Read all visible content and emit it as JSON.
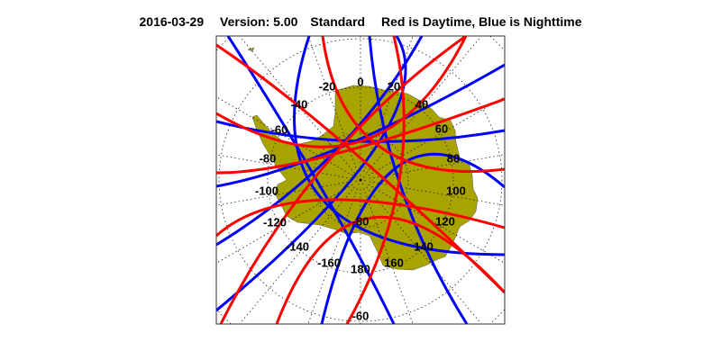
{
  "header": {
    "date": "2016-03-29",
    "version": "Version: 5.00",
    "mode": "Standard",
    "legend_text": "Red is Daytime, Blue is Nighttime"
  },
  "map": {
    "projection": "south polar stereographic",
    "land_color": "#A9A300",
    "day_track_color": "#FF0000",
    "night_track_color": "#0000FF",
    "longitude_labels": [
      "0",
      "20",
      "40",
      "60",
      "80",
      "100",
      "120",
      "140",
      "160",
      "180",
      "-160",
      "-140",
      "-120",
      "-100",
      "-80",
      "-60",
      "-40",
      "-20"
    ],
    "latitude_labels": [
      "-80",
      "-60"
    ]
  }
}
